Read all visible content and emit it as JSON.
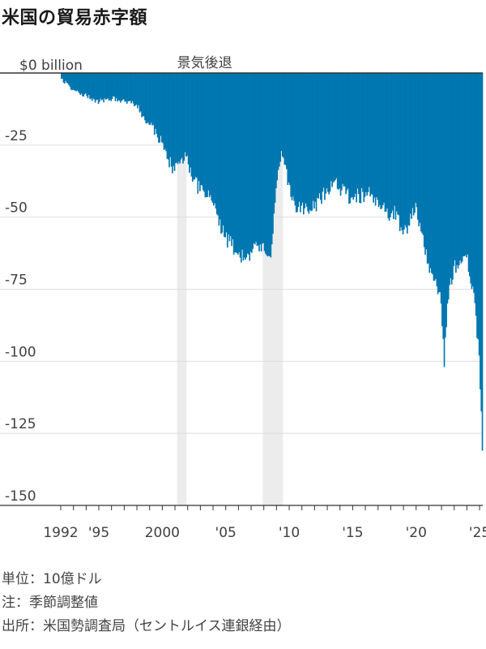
{
  "title": "米国の貿易赤字額",
  "colors": {
    "bar": "#0077b0",
    "recession": "#ececec",
    "grid": "#dedede",
    "axis": "#333333",
    "label": "#404040"
  },
  "chart_data": {
    "type": "bar",
    "title": "米国の貿易赤字額",
    "ylabel_unit": "$0 billion",
    "ylim": [
      -150,
      0
    ],
    "yticks": [
      {
        "value": 0,
        "label": "$0 billion"
      },
      {
        "value": -25,
        "label": "-25"
      },
      {
        "value": -50,
        "label": "-50"
      },
      {
        "value": -75,
        "label": "-75"
      },
      {
        "value": -100,
        "label": "-100"
      },
      {
        "value": -125,
        "label": "-125"
      },
      {
        "value": -150,
        "label": "-150"
      }
    ],
    "xlim": [
      "1992-01",
      "2025-03"
    ],
    "xticks": [
      {
        "year": 1992,
        "label": "1992"
      },
      {
        "year": 1995,
        "label": "'95"
      },
      {
        "year": 2000,
        "label": "2000"
      },
      {
        "year": 2005,
        "label": "'05"
      },
      {
        "year": 2010,
        "label": "'10"
      },
      {
        "year": 2015,
        "label": "'15"
      },
      {
        "year": 2020,
        "label": "'20"
      },
      {
        "year": 2025,
        "label": "'25"
      }
    ],
    "frequency": "monthly",
    "recession_label": "景気後退",
    "recessions": [
      {
        "start": "2001-03",
        "end": "2001-11"
      },
      {
        "start": "2007-12",
        "end": "2009-06"
      }
    ],
    "anchors": [
      [
        "1992-01",
        -2
      ],
      [
        "1993-01",
        -6
      ],
      [
        "1994-01",
        -8
      ],
      [
        "1995-01",
        -10
      ],
      [
        "1996-01",
        -9
      ],
      [
        "1997-01",
        -10
      ],
      [
        "1997-12",
        -11
      ],
      [
        "1998-06",
        -15
      ],
      [
        "1999-01",
        -18
      ],
      [
        "1999-12",
        -24
      ],
      [
        "2000-06",
        -30
      ],
      [
        "2000-12",
        -34
      ],
      [
        "2001-06",
        -30
      ],
      [
        "2001-11",
        -29
      ],
      [
        "2002-06",
        -37
      ],
      [
        "2002-12",
        -41
      ],
      [
        "2003-06",
        -43
      ],
      [
        "2003-12",
        -45
      ],
      [
        "2004-06",
        -53
      ],
      [
        "2004-12",
        -57
      ],
      [
        "2005-06",
        -60
      ],
      [
        "2005-12",
        -63
      ],
      [
        "2006-06",
        -64
      ],
      [
        "2006-12",
        -62
      ],
      [
        "2007-06",
        -60
      ],
      [
        "2007-12",
        -59
      ],
      [
        "2008-07",
        -64
      ],
      [
        "2008-12",
        -40
      ],
      [
        "2009-05",
        -27
      ],
      [
        "2009-12",
        -38
      ],
      [
        "2010-06",
        -46
      ],
      [
        "2010-12",
        -46
      ],
      [
        "2011-06",
        -48
      ],
      [
        "2011-12",
        -47
      ],
      [
        "2012-06",
        -44
      ],
      [
        "2012-12",
        -40
      ],
      [
        "2013-06",
        -38
      ],
      [
        "2013-12",
        -40
      ],
      [
        "2014-06",
        -42
      ],
      [
        "2014-12",
        -43
      ],
      [
        "2015-06",
        -42
      ],
      [
        "2015-12",
        -43
      ],
      [
        "2016-06",
        -42
      ],
      [
        "2016-12",
        -44
      ],
      [
        "2017-06",
        -45
      ],
      [
        "2017-12",
        -50
      ],
      [
        "2018-06",
        -48
      ],
      [
        "2018-12",
        -56
      ],
      [
        "2019-06",
        -53
      ],
      [
        "2019-12",
        -45
      ],
      [
        "2020-04",
        -52
      ],
      [
        "2020-12",
        -66
      ],
      [
        "2021-06",
        -72
      ],
      [
        "2021-12",
        -80
      ],
      [
        "2022-03",
        -102
      ],
      [
        "2022-06",
        -80
      ],
      [
        "2022-12",
        -67
      ],
      [
        "2023-06",
        -65
      ],
      [
        "2023-12",
        -64
      ],
      [
        "2024-06",
        -74
      ],
      [
        "2024-12",
        -98
      ],
      [
        "2025-03",
        -131
      ]
    ]
  },
  "notes": {
    "unit": "単位：10億ドル",
    "adjustment": "注：季節調整値",
    "source": "出所：米国勢調査局（セントルイス連銀経由）"
  }
}
